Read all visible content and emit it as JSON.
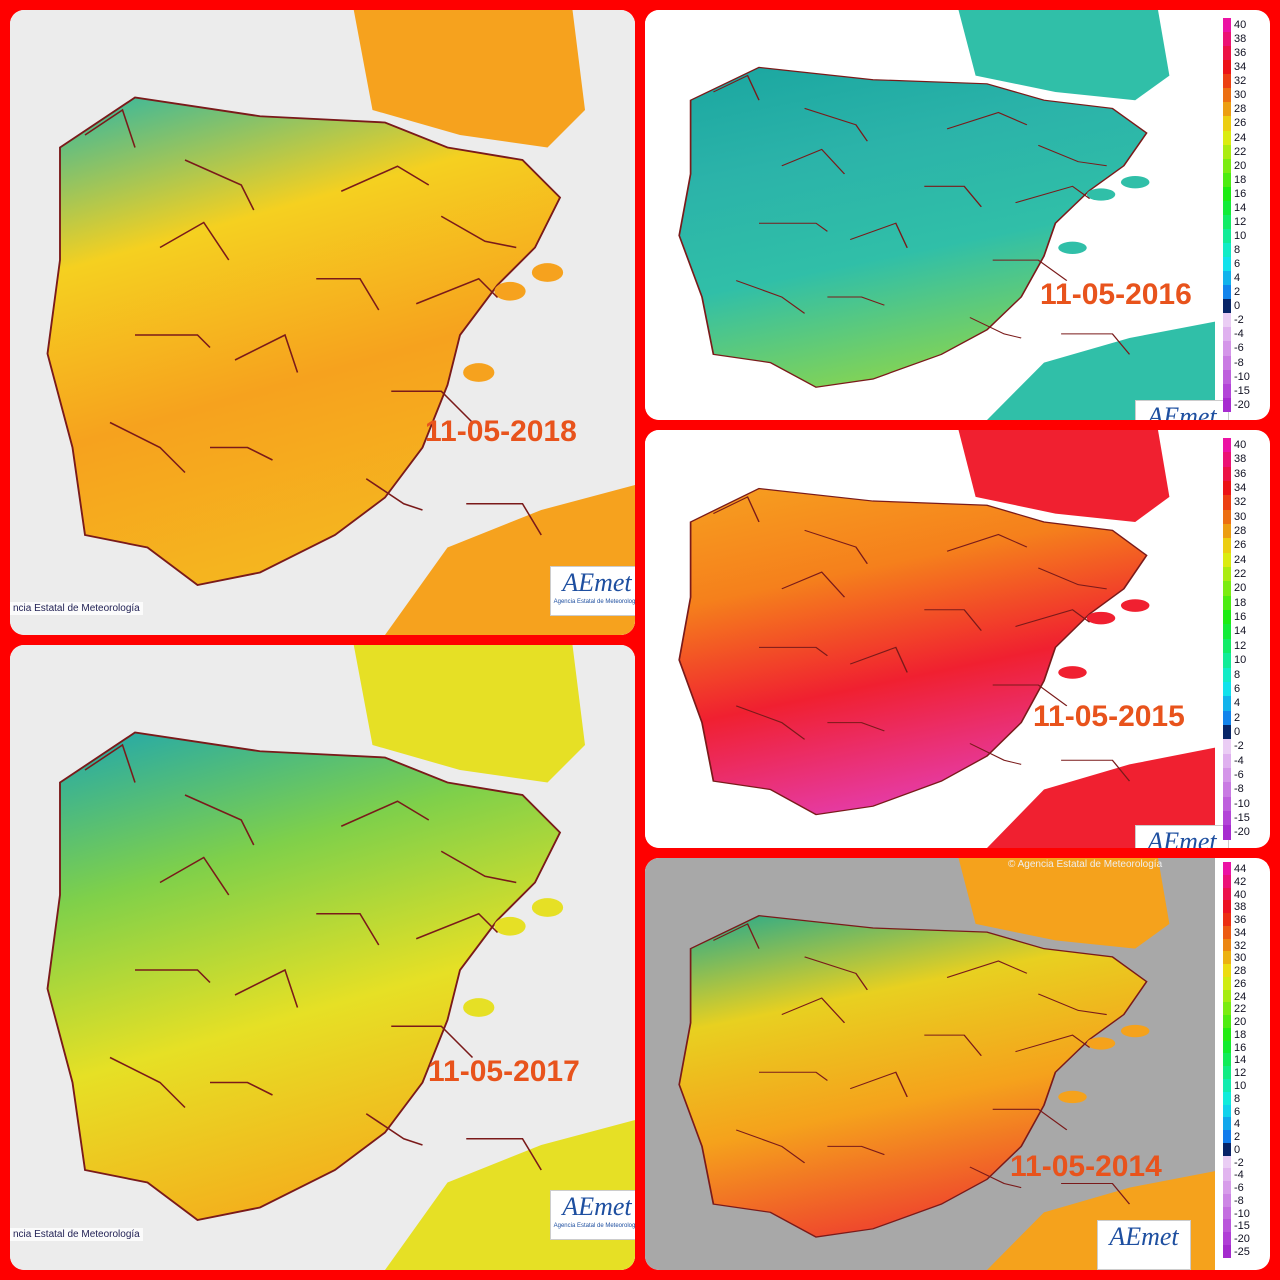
{
  "panels": [
    {
      "date": "11-05-2018",
      "credit": "ncia Estatal de Meteorología",
      "logo": "AEmet",
      "logo_caption": "Agencia Estatal de Meteorología"
    },
    {
      "date": "11-05-2016",
      "logo": "AEmet",
      "legend": [
        40,
        38,
        36,
        34,
        32,
        30,
        28,
        26,
        24,
        22,
        20,
        18,
        16,
        14,
        12,
        10,
        8,
        6,
        4,
        2,
        0,
        -2,
        -4,
        -6,
        -8,
        -10,
        -15,
        -20
      ]
    },
    {
      "date": "11-05-2017",
      "credit": "ncia Estatal de Meteorología",
      "logo": "AEmet",
      "logo_caption": "Agencia Estatal de Meteorología"
    },
    {
      "date": "11-05-2015",
      "logo": "AEmet",
      "legend": [
        40,
        38,
        36,
        34,
        32,
        30,
        28,
        26,
        24,
        22,
        20,
        18,
        16,
        14,
        12,
        10,
        8,
        6,
        4,
        2,
        0,
        -2,
        -4,
        -6,
        -8,
        -10,
        -15,
        -20
      ]
    },
    {
      "date": "11-05-2014",
      "credit": "© Agencia Estatal de Meteorología",
      "logo": "AEmet",
      "legend": [
        44,
        42,
        40,
        38,
        36,
        34,
        32,
        30,
        28,
        26,
        24,
        22,
        20,
        18,
        16,
        14,
        12,
        10,
        8,
        6,
        4,
        2,
        0,
        -2,
        -4,
        -6,
        -8,
        -10,
        -15,
        -20,
        -25
      ]
    }
  ]
}
